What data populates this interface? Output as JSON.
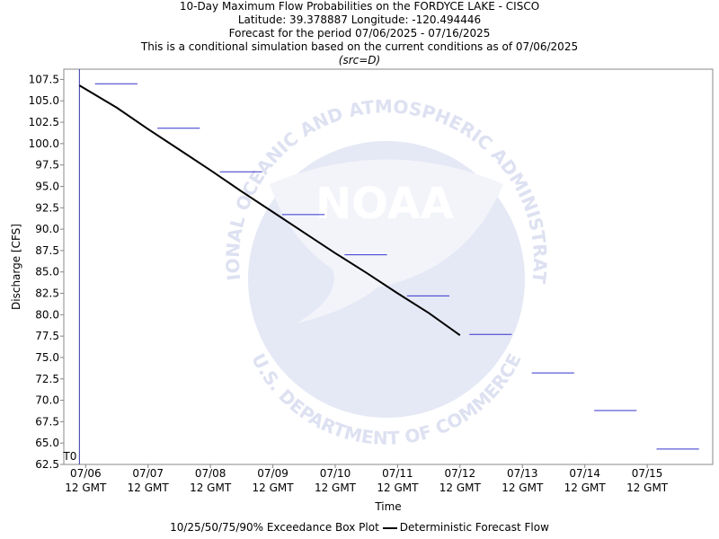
{
  "titles": {
    "line1": "10-Day Maximum Flow Probabilities on the FORDYCE LAKE - CISCO",
    "line2": "Latitude: 39.378887 Longitude: -120.494446",
    "line3": "Forecast for the period 07/06/2025 - 07/16/2025",
    "line4": "This is a conditional simulation based on the current conditions as of 07/06/2025",
    "line5": "(src=D)"
  },
  "watermark": {
    "wordmark": "NOAA",
    "top_arc": "NATIONAL OCEANIC AND ATMOSPHERIC ADMINISTRATION",
    "bottom_arc": "U.S. DEPARTMENT OF COMMERCE"
  },
  "chart_data": {
    "type": "line",
    "xlabel": "Time",
    "ylabel": "Discharge [CFS]",
    "ylim": [
      62.5,
      108.7
    ],
    "xlim": [
      -0.35,
      10.05
    ],
    "yticks": [
      62.5,
      65.0,
      67.5,
      70.0,
      72.5,
      75.0,
      77.5,
      80.0,
      82.5,
      85.0,
      87.5,
      90.0,
      92.5,
      95.0,
      97.5,
      100.0,
      102.5,
      105.0,
      107.5
    ],
    "xticks": [
      {
        "x": 0,
        "line1": "07/06",
        "line2": "12 GMT"
      },
      {
        "x": 1,
        "line1": "07/07",
        "line2": "12 GMT"
      },
      {
        "x": 2,
        "line1": "07/08",
        "line2": "12 GMT"
      },
      {
        "x": 3,
        "line1": "07/09",
        "line2": "12 GMT"
      },
      {
        "x": 4,
        "line1": "07/10",
        "line2": "12 GMT"
      },
      {
        "x": 5,
        "line1": "07/11",
        "line2": "12 GMT"
      },
      {
        "x": 6,
        "line1": "07/12",
        "line2": "12 GMT"
      },
      {
        "x": 7,
        "line1": "07/13",
        "line2": "12 GMT"
      },
      {
        "x": 8,
        "line1": "07/14",
        "line2": "12 GMT"
      },
      {
        "x": 9,
        "line1": "07/15",
        "line2": "12 GMT"
      }
    ],
    "t0": {
      "x": -0.1,
      "label": "T0"
    },
    "exceedance_boxes": [
      {
        "x_start": 0.15,
        "x_end": 0.83,
        "value": 107.0
      },
      {
        "x_start": 1.15,
        "x_end": 1.83,
        "value": 101.8
      },
      {
        "x_start": 2.15,
        "x_end": 2.83,
        "value": 96.7
      },
      {
        "x_start": 3.15,
        "x_end": 3.83,
        "value": 91.7
      },
      {
        "x_start": 4.15,
        "x_end": 4.83,
        "value": 87.0
      },
      {
        "x_start": 5.15,
        "x_end": 5.83,
        "value": 82.2
      },
      {
        "x_start": 6.15,
        "x_end": 6.83,
        "value": 77.7
      },
      {
        "x_start": 7.15,
        "x_end": 7.83,
        "value": 73.2
      },
      {
        "x_start": 8.15,
        "x_end": 8.83,
        "value": 68.8
      },
      {
        "x_start": 9.15,
        "x_end": 9.83,
        "value": 64.3
      }
    ],
    "series": [
      {
        "name": "Deterministic Forecast Flow",
        "x": [
          -0.1,
          0.5,
          1.0,
          1.5,
          2.0,
          2.5,
          3.0,
          3.5,
          4.0,
          4.5,
          5.0,
          5.5,
          6.0
        ],
        "values": [
          106.8,
          104.2,
          101.7,
          99.3,
          96.9,
          94.4,
          92.0,
          89.6,
          87.2,
          84.9,
          82.5,
          80.2,
          77.6
        ]
      }
    ],
    "legend": {
      "box_label": "10/25/50/75/90% Exceedance Box Plot",
      "line_label": "Deterministic Forecast Flow"
    },
    "colors": {
      "box": "#3333cc",
      "forecast": "#000000",
      "t0_line": "#3333aa",
      "watermark": "#e3e6f3"
    }
  }
}
